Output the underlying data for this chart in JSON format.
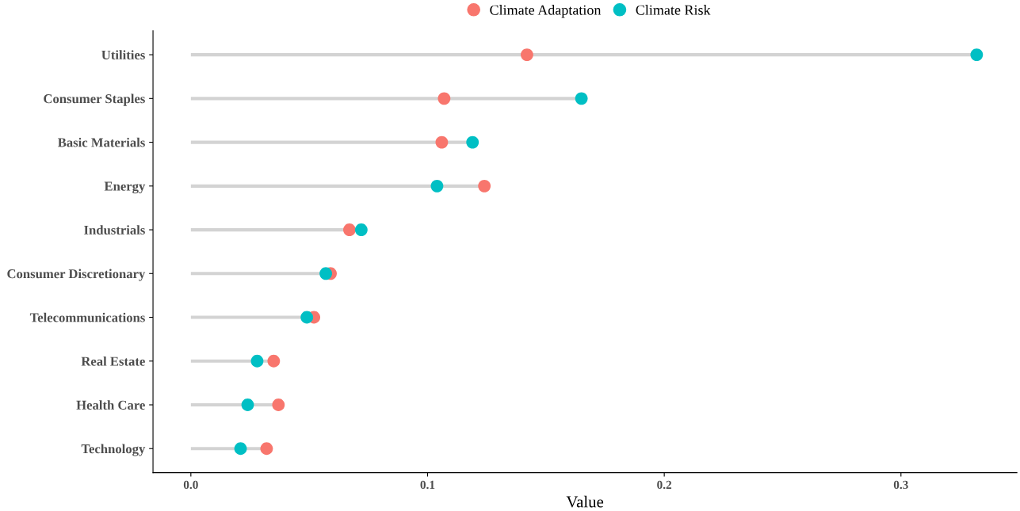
{
  "chart_data": {
    "type": "lollipop",
    "orientation": "horizontal",
    "xlabel": "Value",
    "categories": [
      "Utilities",
      "Consumer Staples",
      "Basic Materials",
      "Energy",
      "Industrials",
      "Consumer Discretionary",
      "Telecommunications",
      "Real Estate",
      "Health Care",
      "Technology"
    ],
    "series": [
      {
        "name": "Climate Adaptation",
        "color": "#f8766d",
        "values": [
          0.142,
          0.107,
          0.106,
          0.124,
          0.067,
          0.059,
          0.052,
          0.035,
          0.037,
          0.032
        ]
      },
      {
        "name": "Climate Risk",
        "color": "#00bfc4",
        "values": [
          0.332,
          0.165,
          0.119,
          0.104,
          0.072,
          0.057,
          0.049,
          0.028,
          0.024,
          0.021
        ]
      }
    ],
    "xlim": [
      -0.016,
      0.349
    ],
    "xticks": [
      {
        "value": 0,
        "label": "0.0"
      },
      0.1,
      0.2,
      0.3
    ],
    "legend": "top",
    "marker": "circle",
    "grid": false
  }
}
